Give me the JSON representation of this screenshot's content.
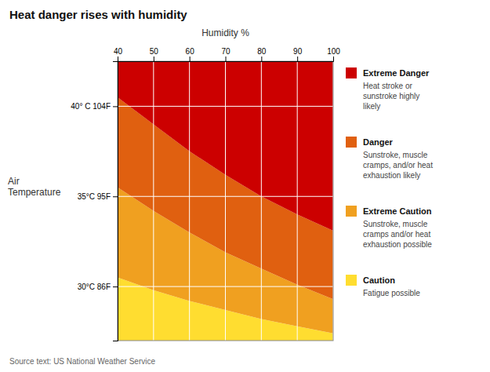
{
  "chart_data": {
    "type": "area",
    "title": "Heat danger rises with humidity",
    "xlabel": "Humidity %",
    "ylabel": "Air\nTemperature",
    "source": "Source text: US National Weather Service",
    "x": [
      40,
      50,
      60,
      70,
      80,
      90,
      100
    ],
    "series": [
      {
        "name": "Extreme Danger",
        "color": "#CC0000",
        "description": "Heat stroke or\nsunstroke highly\nlikely"
      },
      {
        "name": "Danger",
        "color": "#E06010",
        "description": "Sunstroke, muscle\ncramps, and/or heat\nexhaustion likely",
        "values": [
          40.5,
          39.0,
          37.5,
          36.2,
          35.0,
          34.0,
          33.1
        ]
      },
      {
        "name": "Extreme Caution",
        "color": "#F0A020",
        "description": "Sunstroke, muscle\ncramps and/or heat\nexhaustion possible",
        "values": [
          35.5,
          34.2,
          33.0,
          31.9,
          31.0,
          30.1,
          29.3
        ]
      },
      {
        "name": "Caution",
        "color": "#FFDD30",
        "description": "Fatigue possible",
        "values": [
          30.5,
          29.8,
          29.2,
          28.7,
          28.2,
          27.8,
          27.4
        ]
      }
    ],
    "xlim": [
      40,
      100
    ],
    "ylim": [
      27,
      42.5
    ],
    "xticks": [
      40,
      50,
      60,
      70,
      80,
      90,
      100
    ],
    "yticks": [
      {
        "value": 30,
        "label": "30°C 86F"
      },
      {
        "value": 35,
        "label": "35°C 95F"
      },
      {
        "value": 40,
        "label": "40° C 104F"
      }
    ],
    "grid": true,
    "legend": "right"
  }
}
